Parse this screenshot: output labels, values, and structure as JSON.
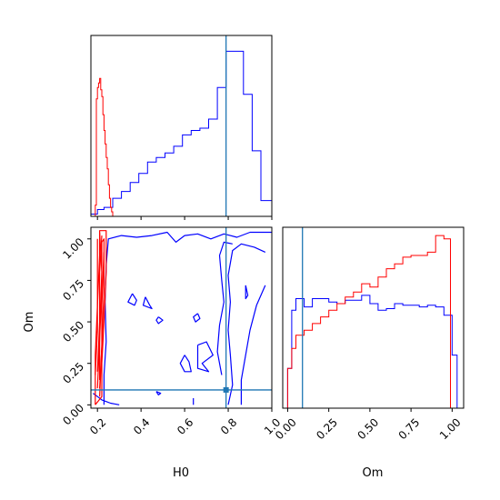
{
  "figure": {
    "xlabel_h0": "H0",
    "xlabel_om": "Om",
    "ylabel_om": "Om"
  },
  "colors": {
    "series_a": "#0000ff",
    "series_b": "#ff0000",
    "truth": "#1f77b4",
    "axes": "#000000"
  },
  "chart_data": [
    {
      "type": "histogram",
      "panel": "H0 marginal (top-left)",
      "xlim": [
        0.17,
        1.0
      ],
      "x_ticks": [
        0.2,
        0.4,
        0.6,
        0.8,
        1.0
      ],
      "x_tick_labels_shown": false,
      "y_ticks_shown": false,
      "truth_x": 0.79,
      "series": [
        {
          "color": "blue",
          "bin_edges": [
            0.17,
            0.2,
            0.23,
            0.27,
            0.31,
            0.35,
            0.39,
            0.43,
            0.47,
            0.51,
            0.55,
            0.59,
            0.63,
            0.67,
            0.71,
            0.75,
            0.79,
            0.83,
            0.87,
            0.91,
            0.95,
            1.0
          ],
          "counts": [
            0.01,
            0.03,
            0.04,
            0.08,
            0.11,
            0.15,
            0.19,
            0.24,
            0.26,
            0.28,
            0.31,
            0.36,
            0.38,
            0.39,
            0.43,
            0.57,
            0.73,
            0.73,
            0.54,
            0.29,
            0.07
          ]
        },
        {
          "color": "red",
          "bin_edges": [
            0.19,
            0.195,
            0.2,
            0.205,
            0.21,
            0.215,
            0.22,
            0.225,
            0.23,
            0.235,
            0.24,
            0.245,
            0.25,
            0.255,
            0.26,
            0.265,
            0.27
          ],
          "counts": [
            0.05,
            0.52,
            0.57,
            0.59,
            0.61,
            0.56,
            0.53,
            0.45,
            0.38,
            0.32,
            0.26,
            0.21,
            0.14,
            0.08,
            0.04,
            0.02
          ]
        }
      ]
    },
    {
      "type": "contour",
      "panel": "H0 vs Om joint (bottom-left)",
      "xlabel": "H0",
      "ylabel": "Om",
      "xlim": [
        0.17,
        1.0
      ],
      "ylim": [
        -0.02,
        1.07
      ],
      "x_ticks": [
        0.2,
        0.4,
        0.6,
        0.8,
        1.0
      ],
      "y_ticks": [
        0.0,
        0.25,
        0.5,
        0.75,
        1.0
      ],
      "x_tick_labels": [
        "0.2",
        "0.4",
        "0.6",
        "0.8",
        "1.0"
      ],
      "y_tick_labels": [
        "0.00",
        "0.25",
        "0.50",
        "0.75",
        "1.00"
      ],
      "truth_point": [
        0.79,
        0.09
      ],
      "series": [
        {
          "color": "blue",
          "contours": [
            [
              [
                0.23,
                0.0
              ],
              [
                0.23,
                0.18
              ],
              [
                0.24,
                0.38
              ],
              [
                0.235,
                0.62
              ],
              [
                0.24,
                0.84
              ],
              [
                0.25,
                1.0
              ],
              [
                0.31,
                1.02
              ],
              [
                0.38,
                1.01
              ],
              [
                0.45,
                1.02
              ],
              [
                0.52,
                1.04
              ],
              [
                0.56,
                0.98
              ],
              [
                0.6,
                1.02
              ],
              [
                0.66,
                1.03
              ],
              [
                0.72,
                1.0
              ],
              [
                0.78,
                1.03
              ],
              [
                0.84,
                1.01
              ],
              [
                0.9,
                1.04
              ],
              [
                1.0,
                1.04
              ]
            ],
            [
              [
                0.18,
                0.07
              ],
              [
                0.2,
                0.05
              ],
              [
                0.22,
                0.03
              ],
              [
                0.24,
                0.02
              ],
              [
                0.26,
                0.01
              ],
              [
                0.3,
                0.0
              ]
            ],
            [
              [
                0.8,
                0.0
              ],
              [
                0.82,
                0.12
              ],
              [
                0.81,
                0.3
              ],
              [
                0.8,
                0.45
              ],
              [
                0.81,
                0.62
              ],
              [
                0.8,
                0.78
              ],
              [
                0.82,
                0.93
              ],
              [
                0.86,
                0.97
              ],
              [
                0.92,
                0.95
              ],
              [
                0.97,
                0.92
              ]
            ],
            [
              [
                0.97,
                0.72
              ],
              [
                0.93,
                0.6
              ],
              [
                0.9,
                0.45
              ],
              [
                0.88,
                0.3
              ],
              [
                0.86,
                0.15
              ],
              [
                0.86,
                0.0
              ]
            ],
            [
              [
                0.77,
                0.18
              ],
              [
                0.75,
                0.32
              ],
              [
                0.76,
                0.48
              ],
              [
                0.78,
                0.62
              ],
              [
                0.77,
                0.75
              ],
              [
                0.76,
                0.9
              ],
              [
                0.78,
                0.98
              ],
              [
                0.82,
                0.97
              ]
            ],
            [
              [
                0.42,
                0.65
              ],
              [
                0.44,
                0.6
              ],
              [
                0.45,
                0.58
              ],
              [
                0.41,
                0.6
              ],
              [
                0.42,
                0.65
              ]
            ],
            [
              [
                0.36,
                0.67
              ],
              [
                0.38,
                0.63
              ],
              [
                0.37,
                0.6
              ],
              [
                0.34,
                0.62
              ],
              [
                0.36,
                0.67
              ]
            ],
            [
              [
                0.66,
                0.55
              ],
              [
                0.67,
                0.52
              ],
              [
                0.65,
                0.5
              ],
              [
                0.64,
                0.53
              ],
              [
                0.66,
                0.55
              ]
            ],
            [
              [
                0.88,
                0.72
              ],
              [
                0.89,
                0.66
              ],
              [
                0.88,
                0.64
              ],
              [
                0.88,
                0.72
              ]
            ],
            [
              [
                0.66,
                0.36
              ],
              [
                0.7,
                0.38
              ],
              [
                0.73,
                0.3
              ],
              [
                0.68,
                0.25
              ],
              [
                0.71,
                0.2
              ],
              [
                0.66,
                0.22
              ],
              [
                0.66,
                0.36
              ]
            ],
            [
              [
                0.6,
                0.3
              ],
              [
                0.62,
                0.26
              ],
              [
                0.63,
                0.2
              ],
              [
                0.6,
                0.2
              ],
              [
                0.58,
                0.25
              ],
              [
                0.6,
                0.3
              ]
            ],
            [
              [
                0.48,
                0.53
              ],
              [
                0.5,
                0.51
              ],
              [
                0.48,
                0.49
              ],
              [
                0.47,
                0.51
              ],
              [
                0.48,
                0.53
              ]
            ],
            [
              [
                0.47,
                0.08
              ],
              [
                0.49,
                0.07
              ],
              [
                0.48,
                0.06
              ],
              [
                0.47,
                0.08
              ]
            ],
            [
              [
                0.64,
                0.0
              ],
              [
                0.64,
                0.04
              ]
            ]
          ]
        },
        {
          "color": "red",
          "contours": [
            [
              [
                0.19,
                0.0
              ],
              [
                0.19,
                0.3
              ],
              [
                0.2,
                0.6
              ],
              [
                0.21,
                0.9
              ],
              [
                0.21,
                1.05
              ],
              [
                0.24,
                1.05
              ],
              [
                0.24,
                0.8
              ],
              [
                0.23,
                0.5
              ],
              [
                0.22,
                0.25
              ],
              [
                0.22,
                0.05
              ],
              [
                0.19,
                0.0
              ]
            ],
            [
              [
                0.2,
                0.1
              ],
              [
                0.21,
                0.4
              ],
              [
                0.22,
                0.7
              ],
              [
                0.22,
                0.98
              ],
              [
                0.23,
                1.0
              ],
              [
                0.23,
                0.7
              ],
              [
                0.22,
                0.35
              ],
              [
                0.21,
                0.1
              ]
            ],
            [
              [
                0.2,
                0.2
              ],
              [
                0.21,
                0.5
              ],
              [
                0.21,
                0.8
              ],
              [
                0.22,
                1.02
              ]
            ],
            [
              [
                0.21,
                0.05
              ],
              [
                0.22,
                0.35
              ],
              [
                0.22,
                0.6
              ],
              [
                0.23,
                0.92
              ]
            ],
            [
              [
                0.19,
                0.18
              ],
              [
                0.2,
                0.45
              ],
              [
                0.2,
                0.72
              ],
              [
                0.2,
                1.0
              ]
            ],
            [
              [
                0.21,
                0.15
              ],
              [
                0.21,
                0.45
              ],
              [
                0.22,
                0.8
              ],
              [
                0.21,
                1.04
              ]
            ]
          ]
        }
      ]
    },
    {
      "type": "histogram",
      "panel": "Om marginal (bottom-right)",
      "xlabel": "Om",
      "xlim": [
        -0.03,
        1.07
      ],
      "x_ticks": [
        0.0,
        0.25,
        0.5,
        0.75,
        1.0
      ],
      "x_tick_labels": [
        "0.00",
        "0.25",
        "0.50",
        "0.75",
        "1.00"
      ],
      "y_ticks_shown": false,
      "truth_x": 0.09,
      "series": [
        {
          "color": "blue",
          "bin_edges": [
            0.0,
            0.025,
            0.05,
            0.1,
            0.15,
            0.2,
            0.25,
            0.3,
            0.35,
            0.4,
            0.45,
            0.5,
            0.55,
            0.6,
            0.65,
            0.7,
            0.75,
            0.8,
            0.85,
            0.9,
            0.95,
            1.0,
            1.03
          ],
          "counts": [
            0.0,
            0.35,
            0.42,
            0.37,
            0.42,
            0.42,
            0.4,
            0.39,
            0.41,
            0.41,
            0.44,
            0.39,
            0.35,
            0.36,
            0.39,
            0.38,
            0.38,
            0.37,
            0.38,
            0.37,
            0.32,
            0.08
          ]
        },
        {
          "color": "red",
          "bin_edges": [
            0.0,
            0.025,
            0.05,
            0.1,
            0.15,
            0.2,
            0.25,
            0.3,
            0.35,
            0.4,
            0.45,
            0.5,
            0.55,
            0.6,
            0.65,
            0.7,
            0.75,
            0.8,
            0.85,
            0.9,
            0.95,
            0.99
          ],
          "counts": [
            0.0,
            0.12,
            0.2,
            0.23,
            0.27,
            0.31,
            0.35,
            0.39,
            0.43,
            0.46,
            0.51,
            0.49,
            0.55,
            0.6,
            0.63,
            0.67,
            0.68,
            0.68,
            0.7,
            0.8,
            0.78
          ]
        }
      ]
    }
  ]
}
